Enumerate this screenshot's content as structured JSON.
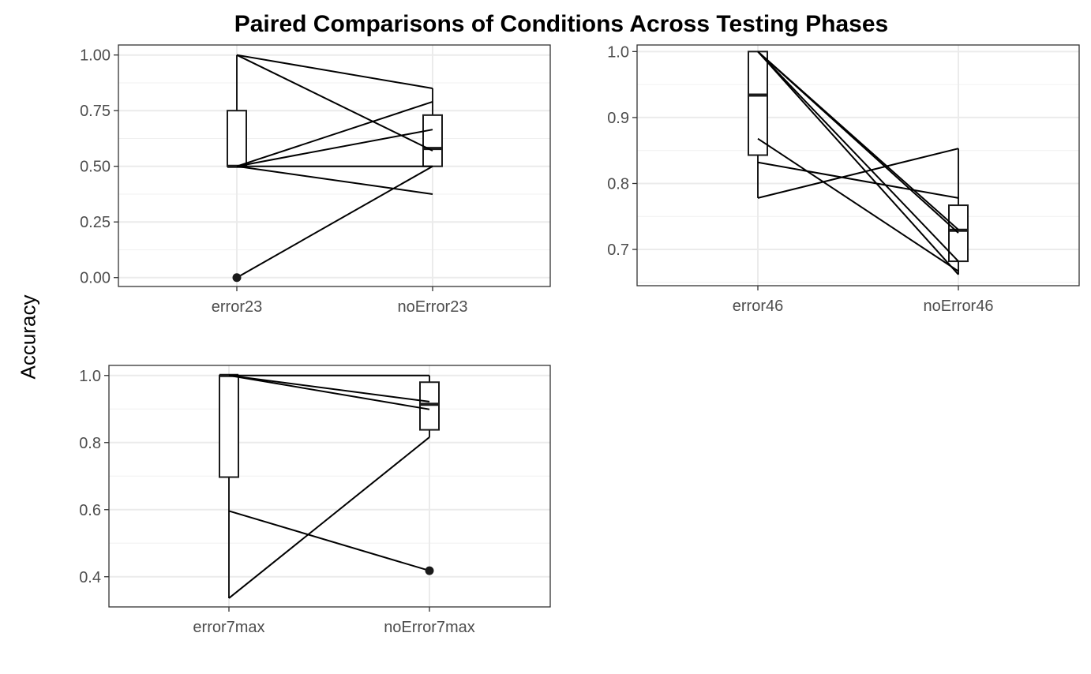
{
  "title": "Paired Comparisons of Conditions Across Testing Phases",
  "y_axis_label": "Accuracy",
  "chart_data": [
    {
      "type": "line",
      "subtype": "paired-boxplot",
      "categories": [
        "error23",
        "noError23"
      ],
      "ylim": [
        -0.04,
        1.045
      ],
      "yticks": [
        0,
        0.25,
        0.5,
        0.75,
        1.0
      ],
      "ytick_labels": [
        "0.00",
        "0.25",
        "0.50",
        "0.75",
        "1.00"
      ],
      "grid": true,
      "boxes": [
        {
          "category": "error23",
          "q1": 0.5,
          "median": 0.5,
          "q3": 0.75,
          "whisker_low": 0.5,
          "whisker_high": 1.0
        },
        {
          "category": "noError23",
          "q1": 0.5,
          "median": 0.58,
          "q3": 0.73,
          "whisker_low": 0.5,
          "whisker_high": 0.85
        }
      ],
      "outliers": [
        {
          "category": "error23",
          "value": 0.0
        }
      ],
      "pairs": [
        [
          1.0,
          0.85
        ],
        [
          1.0,
          0.57
        ],
        [
          0.5,
          0.79
        ],
        [
          0.5,
          0.665
        ],
        [
          0.5,
          0.5
        ],
        [
          0.5,
          0.375
        ],
        [
          0.0,
          0.5
        ]
      ]
    },
    {
      "type": "line",
      "subtype": "paired-boxplot",
      "categories": [
        "error46",
        "noError46"
      ],
      "ylim": [
        0.645,
        1.01
      ],
      "yticks": [
        0.7,
        0.8,
        0.9,
        1.0
      ],
      "ytick_labels": [
        "0.7",
        "0.8",
        "0.9",
        "1.0"
      ],
      "grid": true,
      "boxes": [
        {
          "category": "error46",
          "q1": 0.843,
          "median": 0.934,
          "q3": 1.0,
          "whisker_low": 0.778,
          "whisker_high": 1.0
        },
        {
          "category": "noError46",
          "q1": 0.682,
          "median": 0.729,
          "q3": 0.767,
          "whisker_low": 0.662,
          "whisker_high": 0.853
        }
      ],
      "outliers": [],
      "pairs": [
        [
          1.0,
          0.73
        ],
        [
          1.0,
          0.725
        ],
        [
          1.0,
          0.662
        ],
        [
          1.0,
          0.682
        ],
        [
          0.868,
          0.667
        ],
        [
          0.832,
          0.778
        ],
        [
          0.778,
          0.853
        ]
      ]
    },
    {
      "type": "line",
      "subtype": "paired-boxplot",
      "categories": [
        "error7max",
        "noError7max"
      ],
      "ylim": [
        0.31,
        1.03
      ],
      "yticks": [
        0.4,
        0.6,
        0.8,
        1.0
      ],
      "ytick_labels": [
        "0.4",
        "0.6",
        "0.8",
        "1.0"
      ],
      "grid": true,
      "boxes": [
        {
          "category": "error7max",
          "q1": 0.697,
          "median": 1.0,
          "q3": 1.0,
          "whisker_low": 0.336,
          "whisker_high": 1.0
        },
        {
          "category": "noError7max",
          "q1": 0.838,
          "median": 0.914,
          "q3": 0.98,
          "whisker_low": 0.816,
          "whisker_high": 1.0
        }
      ],
      "outliers": [
        {
          "category": "noError7max",
          "value": 0.418
        }
      ],
      "pairs": [
        [
          1.0,
          1.0
        ],
        [
          1.0,
          0.922
        ],
        [
          1.0,
          0.899
        ],
        [
          0.596,
          0.418
        ],
        [
          0.336,
          0.816
        ]
      ]
    }
  ]
}
